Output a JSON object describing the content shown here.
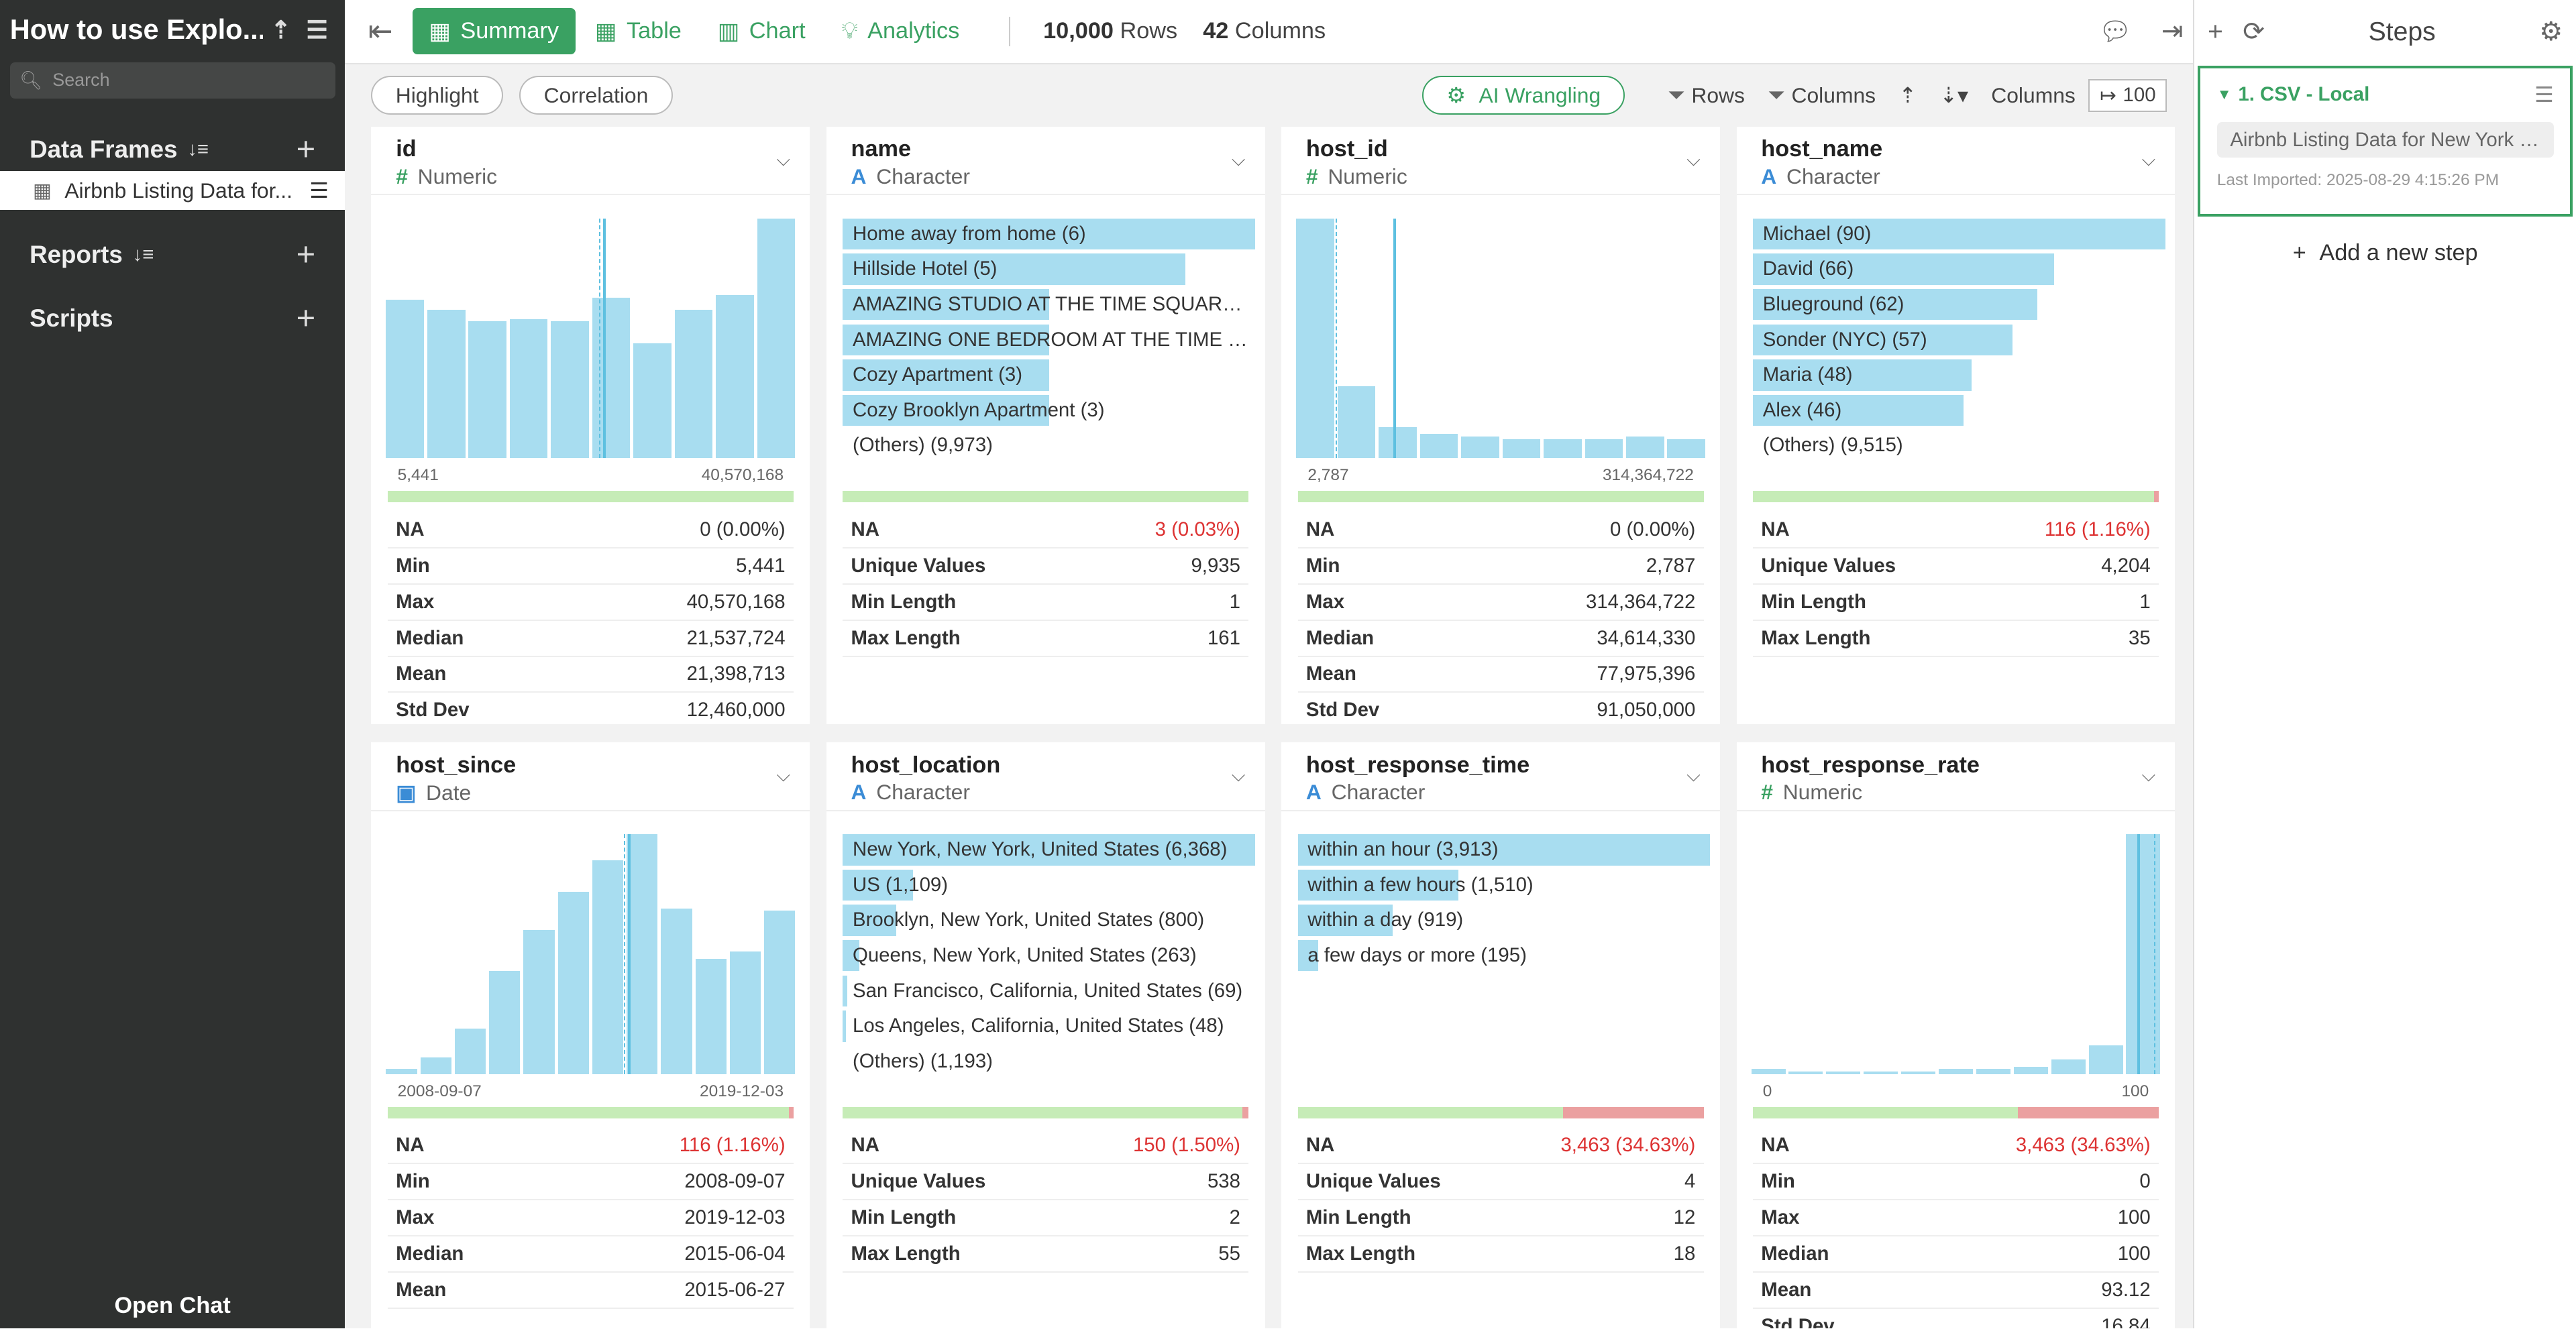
{
  "sidebar": {
    "project_title": "How to use Explo...",
    "search_placeholder": "Search",
    "sections": {
      "data_frames": "Data Frames",
      "reports": "Reports",
      "scripts": "Scripts"
    },
    "data_frame_item": "Airbnb Listing Data for...",
    "open_chat": "Open Chat"
  },
  "toolbar": {
    "tabs": [
      "Summary",
      "Table",
      "Chart",
      "Analytics"
    ],
    "active_tab": "Summary",
    "rows_count": "10,000",
    "rows_label": "Rows",
    "cols_count": "42",
    "cols_label": "Columns"
  },
  "subbar": {
    "highlight": "Highlight",
    "correlation": "Correlation",
    "ai_wrangling": "AI Wrangling",
    "rows": "Rows",
    "columns": "Columns",
    "columns_label": "Columns",
    "columns_value": "100"
  },
  "cards": [
    {
      "name": "id",
      "type": "Numeric",
      "kind": "hist",
      "hist": [
        0.66,
        0.62,
        0.57,
        0.58,
        0.57,
        0.67,
        0.48,
        0.62,
        0.68,
        1.0
      ],
      "lines": [
        {
          "pos": 0.52,
          "style": "dash"
        },
        {
          "pos": 0.53,
          "style": "solid"
        }
      ],
      "min_label": "5,441",
      "max_label": "40,570,168",
      "na_ratio": 0,
      "stats": [
        {
          "k": "NA",
          "v": "0 (0.00%)"
        },
        {
          "k": "Min",
          "v": "5,441"
        },
        {
          "k": "Max",
          "v": "40,570,168"
        },
        {
          "k": "Median",
          "v": "21,537,724"
        },
        {
          "k": "Mean",
          "v": "21,398,713"
        },
        {
          "k": "Std Dev",
          "v": "12,460,000"
        }
      ]
    },
    {
      "name": "name",
      "type": "Character",
      "kind": "cat",
      "cats": [
        {
          "t": "Home away from home (6)",
          "w": 1.0
        },
        {
          "t": "Hillside Hotel (5)",
          "w": 0.83
        },
        {
          "t": "AMAZING STUDIO AT THE TIME SQUARE ...",
          "w": 0.5
        },
        {
          "t": "AMAZING ONE BEDROOM AT THE TIME S...",
          "w": 0.5
        },
        {
          "t": "Cozy Apartment (3)",
          "w": 0.5
        },
        {
          "t": "Cozy Brooklyn Apartment (3)",
          "w": 0.5
        },
        {
          "t": "(Others) (9,973)",
          "w": 0
        }
      ],
      "na_ratio": 0,
      "stats": [
        {
          "k": "NA",
          "v": "3 (0.03%)",
          "red": true
        },
        {
          "k": "Unique Values",
          "v": "9,935"
        },
        {
          "k": "Min Length",
          "v": "1"
        },
        {
          "k": "Max Length",
          "v": "161"
        }
      ]
    },
    {
      "name": "host_id",
      "type": "Numeric",
      "kind": "hist",
      "hist": [
        1.0,
        0.3,
        0.13,
        0.1,
        0.09,
        0.08,
        0.08,
        0.08,
        0.09,
        0.08
      ],
      "lines": [
        {
          "pos": 0.1,
          "style": "dash"
        },
        {
          "pos": 0.24,
          "style": "solid"
        }
      ],
      "min_label": "2,787",
      "max_label": "314,364,722",
      "na_ratio": 0,
      "stats": [
        {
          "k": "NA",
          "v": "0 (0.00%)"
        },
        {
          "k": "Min",
          "v": "2,787"
        },
        {
          "k": "Max",
          "v": "314,364,722"
        },
        {
          "k": "Median",
          "v": "34,614,330"
        },
        {
          "k": "Mean",
          "v": "77,975,396"
        },
        {
          "k": "Std Dev",
          "v": "91,050,000"
        }
      ]
    },
    {
      "name": "host_name",
      "type": "Character",
      "kind": "cat",
      "cats": [
        {
          "t": "Michael (90)",
          "w": 1.0
        },
        {
          "t": "David (66)",
          "w": 0.73
        },
        {
          "t": "Blueground (62)",
          "w": 0.69
        },
        {
          "t": "Sonder (NYC) (57)",
          "w": 0.63
        },
        {
          "t": "Maria (48)",
          "w": 0.53
        },
        {
          "t": "Alex (46)",
          "w": 0.51
        },
        {
          "t": "(Others) (9,515)",
          "w": 0
        }
      ],
      "na_ratio": 0.0116,
      "stats": [
        {
          "k": "NA",
          "v": "116 (1.16%)",
          "red": true
        },
        {
          "k": "Unique Values",
          "v": "4,204"
        },
        {
          "k": "Min Length",
          "v": "1"
        },
        {
          "k": "Max Length",
          "v": "35"
        }
      ]
    },
    {
      "name": "host_since",
      "type": "Date",
      "kind": "hist",
      "hist": [
        0.02,
        0.07,
        0.19,
        0.43,
        0.6,
        0.76,
        0.89,
        1.0,
        0.69,
        0.48,
        0.51,
        0.68
      ],
      "lines": [
        {
          "pos": 0.58,
          "style": "dash"
        },
        {
          "pos": 0.59,
          "style": "solid"
        }
      ],
      "min_label": "2008-09-07",
      "max_label": "2019-12-03",
      "na_ratio": 0.0116,
      "stats": [
        {
          "k": "NA",
          "v": "116 (1.16%)",
          "red": true
        },
        {
          "k": "Min",
          "v": "2008-09-07"
        },
        {
          "k": "Max",
          "v": "2019-12-03"
        },
        {
          "k": "Median",
          "v": "2015-06-04"
        },
        {
          "k": "Mean",
          "v": "2015-06-27"
        }
      ]
    },
    {
      "name": "host_location",
      "type": "Character",
      "kind": "cat",
      "cats": [
        {
          "t": "New York, New York, United States (6,368)",
          "w": 1.0
        },
        {
          "t": "US (1,109)",
          "w": 0.17
        },
        {
          "t": "Brooklyn, New York, United States (800)",
          "w": 0.13
        },
        {
          "t": "Queens, New York, United States (263)",
          "w": 0.04
        },
        {
          "t": "San Francisco, California, United States (69)",
          "w": 0.011
        },
        {
          "t": "Los Angeles, California, United States (48)",
          "w": 0.008
        },
        {
          "t": "(Others) (1,193)",
          "w": 0
        }
      ],
      "na_ratio": 0.015,
      "stats": [
        {
          "k": "NA",
          "v": "150 (1.50%)",
          "red": true
        },
        {
          "k": "Unique Values",
          "v": "538"
        },
        {
          "k": "Min Length",
          "v": "2"
        },
        {
          "k": "Max Length",
          "v": "55"
        }
      ]
    },
    {
      "name": "host_response_time",
      "type": "Character",
      "kind": "cat",
      "cats": [
        {
          "t": "within an hour (3,913)",
          "w": 1.0
        },
        {
          "t": "within a few hours (1,510)",
          "w": 0.39
        },
        {
          "t": "within a day (919)",
          "w": 0.23
        },
        {
          "t": "a few days or more (195)",
          "w": 0.05
        }
      ],
      "na_ratio": 0.3463,
      "stats": [
        {
          "k": "NA",
          "v": "3,463 (34.63%)",
          "red": true
        },
        {
          "k": "Unique Values",
          "v": "4"
        },
        {
          "k": "Min Length",
          "v": "12"
        },
        {
          "k": "Max Length",
          "v": "18"
        }
      ]
    },
    {
      "name": "host_response_rate",
      "type": "Numeric",
      "kind": "hist",
      "hist": [
        0.02,
        0.01,
        0.01,
        0.01,
        0.01,
        0.02,
        0.02,
        0.03,
        0.06,
        0.12,
        1.0
      ],
      "lines": [
        {
          "pos": 0.94,
          "style": "solid"
        },
        {
          "pos": 0.98,
          "style": "dash"
        }
      ],
      "min_label": "0",
      "max_label": "100",
      "na_ratio": 0.3463,
      "stats": [
        {
          "k": "NA",
          "v": "3,463 (34.63%)",
          "red": true
        },
        {
          "k": "Min",
          "v": "0"
        },
        {
          "k": "Max",
          "v": "100"
        },
        {
          "k": "Median",
          "v": "100"
        },
        {
          "k": "Mean",
          "v": "93.12"
        },
        {
          "k": "Std Dev",
          "v": "16.84"
        }
      ]
    }
  ],
  "steps_panel": {
    "title": "Steps",
    "step_title": "1. CSV - Local",
    "step_source": "Airbnb Listing Data for New York Ci...",
    "last_imported": "Last Imported: 2025-08-29 4:15:26 PM",
    "add_step": "Add a new step"
  },
  "colors": {
    "accent": "#3aa162",
    "bar": "#a8ddf0",
    "na_red": "#eba0a0",
    "ok_green": "#c6ecb7"
  }
}
